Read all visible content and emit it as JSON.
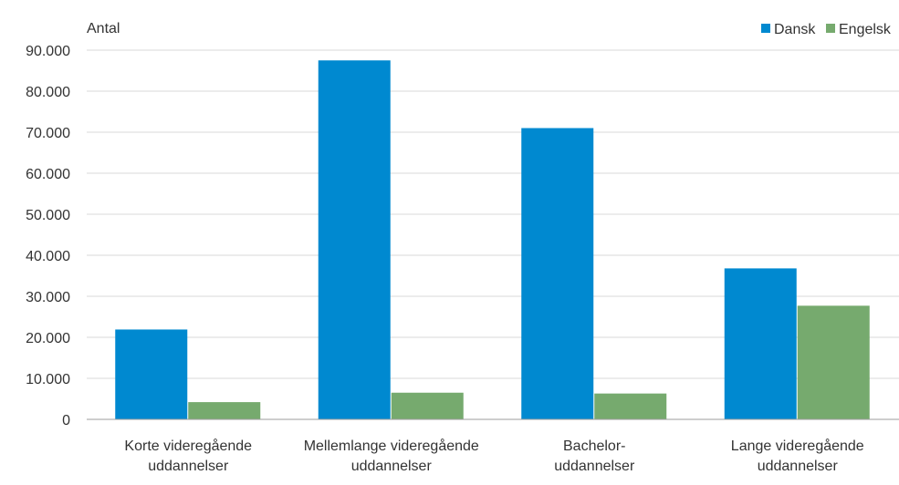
{
  "chart_data": {
    "type": "bar",
    "title": "",
    "ylabel": "Antal",
    "xlabel": "",
    "ylim": [
      0,
      90000
    ],
    "yticks": [
      0,
      10000,
      20000,
      30000,
      40000,
      50000,
      60000,
      70000,
      80000,
      90000
    ],
    "ytick_labels": [
      "0",
      "10.000",
      "20.000",
      "30.000",
      "40.000",
      "50.000",
      "60.000",
      "70.000",
      "80.000",
      "90.000"
    ],
    "categories": [
      [
        "Korte videregående",
        "uddannelser"
      ],
      [
        "Mellemlange videregående",
        "uddannelser"
      ],
      [
        "Bachelor-",
        "uddannelser"
      ],
      [
        "Lange videregående",
        "uddannelser"
      ]
    ],
    "series": [
      {
        "name": "Dansk",
        "color": "#0089d0",
        "values": [
          21900,
          87500,
          71000,
          36800
        ]
      },
      {
        "name": "Engelsk",
        "color": "#76aa6e",
        "values": [
          4200,
          6500,
          6300,
          27700
        ]
      }
    ],
    "grid": true,
    "legend_position": "top-right"
  }
}
